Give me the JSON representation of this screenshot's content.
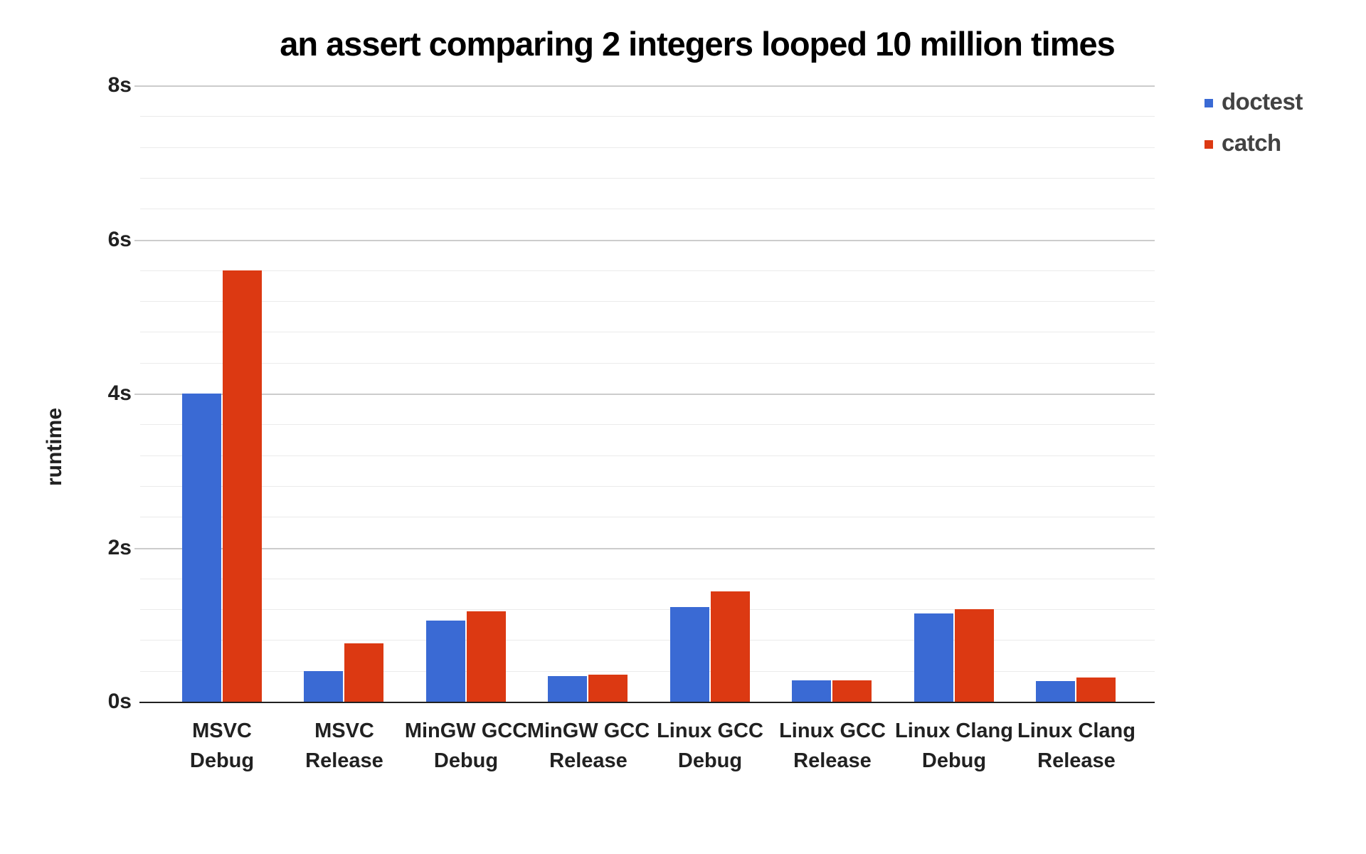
{
  "title": "an assert comparing 2 integers looped 10 million times",
  "y_axis": {
    "label": "runtime",
    "tick_labels": [
      "0s",
      "2s",
      "4s",
      "6s",
      "8s"
    ]
  },
  "legend": [
    {
      "label": "doctest",
      "color": "#3A6AD4"
    },
    {
      "label": "catch",
      "color": "#DC3912"
    }
  ],
  "chart_data": {
    "type": "bar",
    "title": "an assert comparing 2 integers looped 10 million times",
    "xlabel": "",
    "ylabel": "runtime",
    "categories": [
      "MSVC Debug",
      "MSVC Release",
      "MinGW GCC Debug",
      "MinGW GCC Release",
      "Linux GCC Debug",
      "Linux GCC Release",
      "Linux Clang Debug",
      "Linux Clang Release"
    ],
    "category_lines": [
      [
        "MSVC",
        "Debug"
      ],
      [
        "MSVC",
        "Release"
      ],
      [
        "MinGW GCC",
        "Debug"
      ],
      [
        "MinGW GCC",
        "Release"
      ],
      [
        "Linux GCC",
        "Debug"
      ],
      [
        "Linux GCC",
        "Release"
      ],
      [
        "Linux Clang",
        "Debug"
      ],
      [
        "Linux Clang",
        "Release"
      ]
    ],
    "series": [
      {
        "name": "doctest",
        "color": "#3A6AD4",
        "values": [
          4.0,
          0.4,
          1.05,
          0.33,
          1.23,
          0.28,
          1.15,
          0.27
        ]
      },
      {
        "name": "catch",
        "color": "#DC3912",
        "values": [
          5.6,
          0.76,
          1.17,
          0.35,
          1.43,
          0.28,
          1.2,
          0.31
        ]
      }
    ],
    "ylim": [
      0,
      8
    ],
    "ytick_step": 2,
    "minor_gridline_step": 0.4,
    "ytick_suffix": "s",
    "grid": true,
    "legend_position": "top-right",
    "colors": {
      "major_gridline": "#cccccc",
      "minor_gridline": "#ebebeb",
      "baseline": "#212121"
    }
  }
}
